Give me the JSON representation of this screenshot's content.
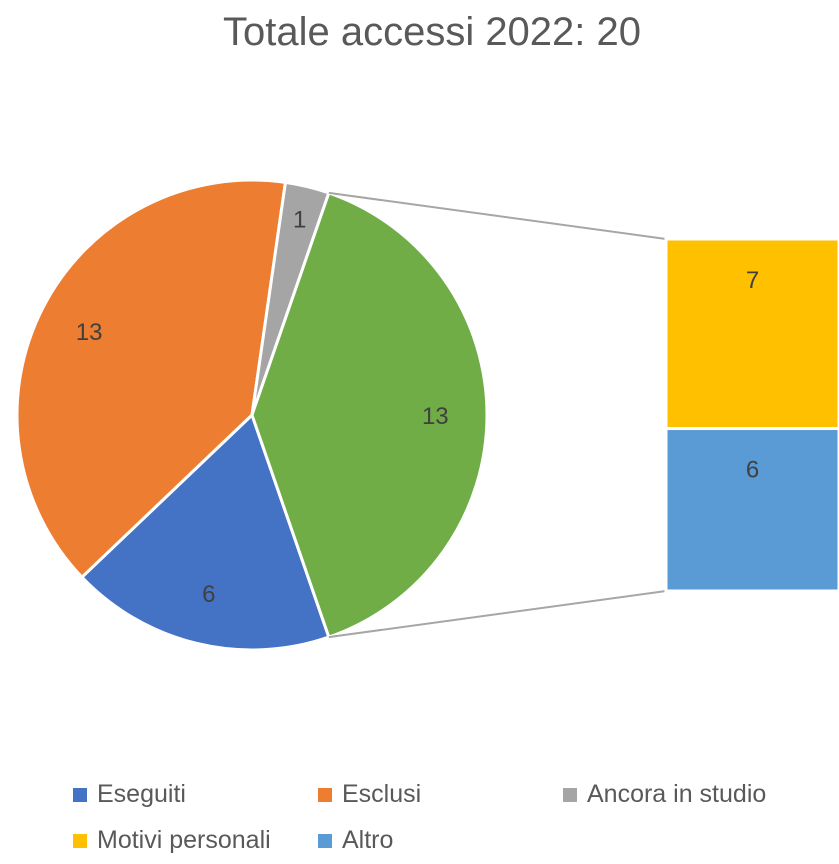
{
  "chart_data": {
    "type": "pie-of-pie",
    "title": "Totale accessi 2022: 20",
    "slices": [
      {
        "name": "Eseguiti",
        "value": 6,
        "color": "#4472C4"
      },
      {
        "name": "Esclusi",
        "value": 13,
        "color": "#ED7D31"
      },
      {
        "name": "Ancora in studio",
        "value": 1,
        "color": "#A5A5A5"
      },
      {
        "name": "Motivi personali + Altro",
        "value": 13,
        "color": "#70AD47",
        "label": "13"
      }
    ],
    "secondary": [
      {
        "name": "Motivi personali",
        "value": 7,
        "color": "#FFC000"
      },
      {
        "name": "Altro",
        "value": 6,
        "color": "#5B9BD5"
      }
    ],
    "legend": {
      "position": "bottom",
      "entries": [
        {
          "name": "Eseguiti",
          "color": "#4472C4"
        },
        {
          "name": "Esclusi",
          "color": "#ED7D31"
        },
        {
          "name": "Ancora in studio",
          "color": "#A5A5A5"
        },
        {
          "name": "Motivi personali",
          "color": "#FFC000"
        },
        {
          "name": "Altro",
          "color": "#5B9BD5"
        }
      ]
    }
  }
}
